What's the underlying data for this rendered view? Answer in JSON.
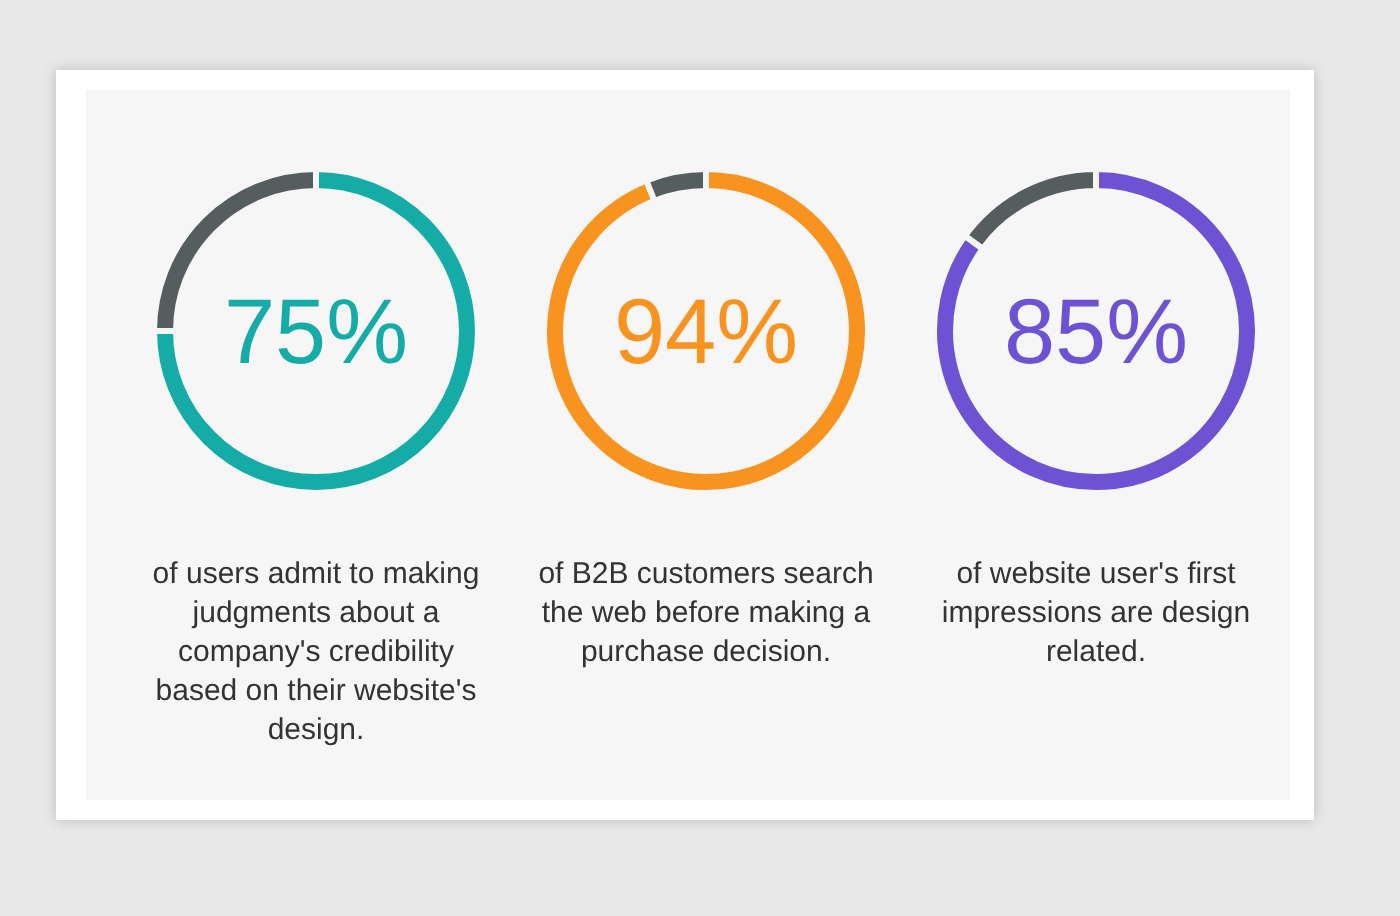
{
  "chart_data": [
    {
      "type": "donut",
      "categories": [
        null,
        null
      ],
      "values": [
        75,
        25
      ],
      "colors": [
        "#15aca8",
        "#555d5f"
      ],
      "value_labels": [
        "75%",
        null
      ],
      "annotations": [
        "of users admit to making judgments about a company's credibility based on their website's design."
      ]
    },
    {
      "type": "donut",
      "categories": [
        null,
        null
      ],
      "values": [
        94,
        6
      ],
      "colors": [
        "#f7931e",
        "#555d5f"
      ],
      "value_labels": [
        "94%",
        null
      ],
      "annotations": [
        "of B2B customers search the web before making a purchase decision."
      ]
    },
    {
      "type": "donut",
      "categories": [
        null,
        null
      ],
      "values": [
        85,
        15
      ],
      "colors": [
        "#6e52d4",
        "#555d5f"
      ],
      "value_labels": [
        "85%",
        null
      ],
      "annotations": [
        "of website user's first impressions are design related."
      ]
    }
  ]
}
